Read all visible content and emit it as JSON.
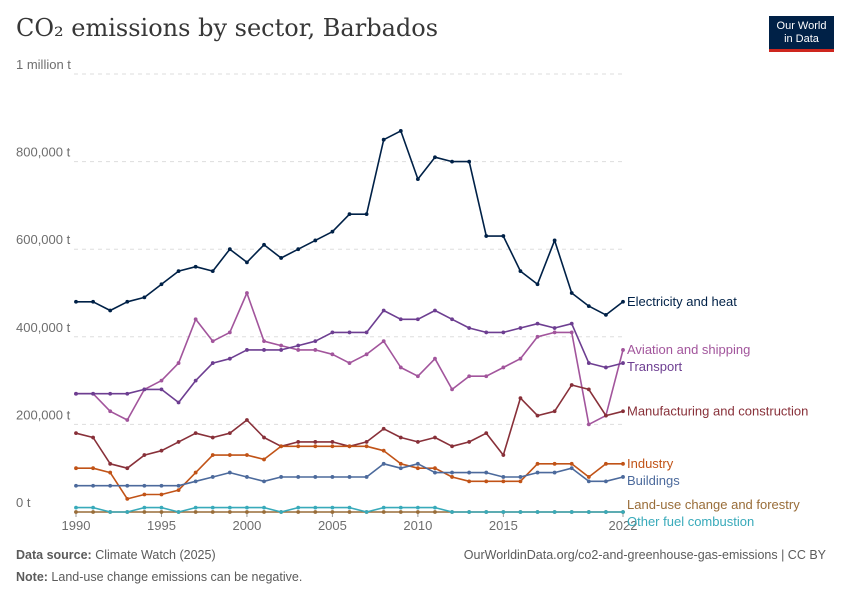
{
  "title": "CO₂ emissions by sector, Barbados",
  "logo": {
    "line1": "Our World",
    "line2": "in Data"
  },
  "footer": {
    "source_label": "Data source:",
    "source_text": " Climate Watch (2025)",
    "url": "OurWorldinData.org/co2-and-greenhouse-gas-emissions | CC BY",
    "note_label": "Note:",
    "note_text": " Land-use change emissions can be negative."
  },
  "chart_data": {
    "type": "line",
    "x": [
      1990,
      1991,
      1992,
      1993,
      1994,
      1995,
      1996,
      1997,
      1998,
      1999,
      2000,
      2001,
      2002,
      2003,
      2004,
      2005,
      2006,
      2007,
      2008,
      2009,
      2010,
      2011,
      2012,
      2013,
      2014,
      2015,
      2016,
      2017,
      2018,
      2019,
      2020,
      2021,
      2022
    ],
    "xticks": [
      "1990",
      "1995",
      "2000",
      "2005",
      "2010",
      "2015",
      "2022"
    ],
    "xtick_values": [
      1990,
      1995,
      2000,
      2005,
      2010,
      2015,
      2022
    ],
    "yticks": [
      "0 t",
      "200,000 t",
      "400,000 t",
      "600,000 t",
      "800,000 t",
      "1 million t"
    ],
    "ytick_values": [
      0,
      200000,
      400000,
      600000,
      800000,
      1000000
    ],
    "ylim": [
      0,
      1000000
    ],
    "grid": true,
    "series": [
      {
        "name": "Electricity and heat",
        "color": "#002147",
        "values": [
          480000,
          480000,
          460000,
          480000,
          490000,
          520000,
          550000,
          560000,
          550000,
          600000,
          570000,
          610000,
          580000,
          600000,
          620000,
          640000,
          680000,
          680000,
          850000,
          870000,
          760000,
          810000,
          800000,
          800000,
          630000,
          630000,
          550000,
          520000,
          620000,
          500000,
          470000,
          450000,
          480000
        ]
      },
      {
        "name": "Aviation and shipping",
        "color": "#a2559c",
        "values": [
          270000,
          270000,
          230000,
          210000,
          280000,
          300000,
          340000,
          440000,
          390000,
          410000,
          500000,
          390000,
          380000,
          370000,
          370000,
          360000,
          340000,
          360000,
          390000,
          330000,
          310000,
          350000,
          280000,
          310000,
          310000,
          330000,
          350000,
          400000,
          410000,
          410000,
          200000,
          220000,
          370000
        ]
      },
      {
        "name": "Transport",
        "color": "#6d3e91",
        "values": [
          270000,
          270000,
          270000,
          270000,
          280000,
          280000,
          250000,
          300000,
          340000,
          350000,
          370000,
          370000,
          370000,
          380000,
          390000,
          410000,
          410000,
          410000,
          460000,
          440000,
          440000,
          460000,
          440000,
          420000,
          410000,
          410000,
          420000,
          430000,
          420000,
          430000,
          340000,
          330000,
          340000
        ]
      },
      {
        "name": "Manufacturing and construction",
        "color": "#883039",
        "values": [
          180000,
          170000,
          110000,
          100000,
          130000,
          140000,
          160000,
          180000,
          170000,
          180000,
          210000,
          170000,
          150000,
          160000,
          160000,
          160000,
          150000,
          160000,
          190000,
          170000,
          160000,
          170000,
          150000,
          160000,
          180000,
          130000,
          260000,
          220000,
          230000,
          290000,
          280000,
          220000,
          230000
        ]
      },
      {
        "name": "Industry",
        "color": "#c15317",
        "values": [
          100000,
          100000,
          90000,
          30000,
          40000,
          40000,
          50000,
          90000,
          130000,
          130000,
          130000,
          120000,
          150000,
          150000,
          150000,
          150000,
          150000,
          150000,
          140000,
          110000,
          100000,
          100000,
          80000,
          70000,
          70000,
          70000,
          70000,
          110000,
          110000,
          110000,
          80000,
          110000,
          110000
        ]
      },
      {
        "name": "Buildings",
        "color": "#4c6a9c",
        "values": [
          60000,
          60000,
          60000,
          60000,
          60000,
          60000,
          60000,
          70000,
          80000,
          90000,
          80000,
          70000,
          80000,
          80000,
          80000,
          80000,
          80000,
          80000,
          110000,
          100000,
          110000,
          90000,
          90000,
          90000,
          90000,
          80000,
          80000,
          90000,
          90000,
          100000,
          70000,
          70000,
          80000
        ]
      },
      {
        "name": "Land-use change and forestry",
        "color": "#996d39",
        "values": [
          0,
          0,
          0,
          0,
          0,
          0,
          0,
          0,
          0,
          0,
          0,
          0,
          0,
          0,
          0,
          0,
          0,
          0,
          0,
          0,
          0,
          0,
          0,
          0,
          0,
          0,
          0,
          0,
          0,
          0,
          0,
          0,
          0
        ]
      },
      {
        "name": "Other fuel combustion",
        "color": "#38aaba",
        "values": [
          10000,
          10000,
          0,
          0,
          10000,
          10000,
          0,
          10000,
          10000,
          10000,
          10000,
          10000,
          0,
          10000,
          10000,
          10000,
          10000,
          0,
          10000,
          10000,
          10000,
          10000,
          0,
          0,
          0,
          0,
          0,
          0,
          0,
          0,
          0,
          0,
          0
        ]
      }
    ],
    "legend": "right-end labels"
  }
}
